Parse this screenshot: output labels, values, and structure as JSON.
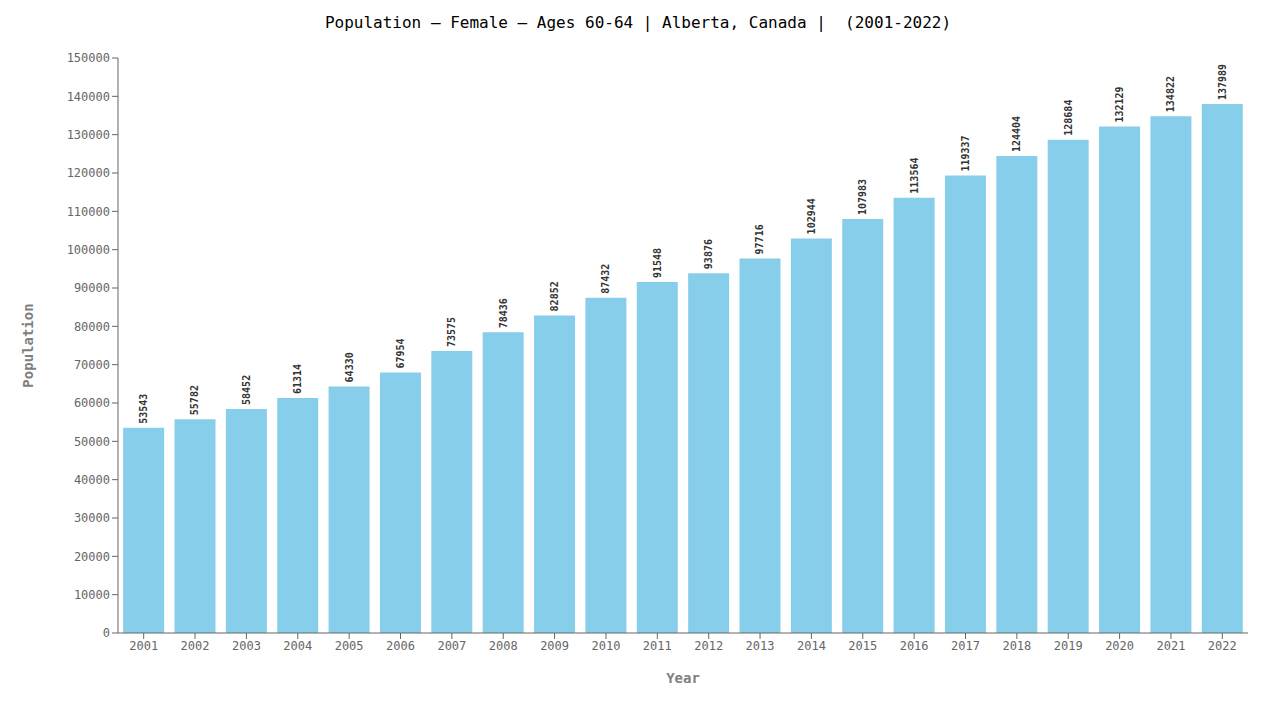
{
  "chart_data": {
    "type": "bar",
    "title": "Population – Female – Ages 60-64 | Alberta, Canada |  (2001-2022)",
    "xlabel": "Year",
    "ylabel": "Population",
    "categories": [
      "2001",
      "2002",
      "2003",
      "2004",
      "2005",
      "2006",
      "2007",
      "2008",
      "2009",
      "2010",
      "2011",
      "2012",
      "2013",
      "2014",
      "2015",
      "2016",
      "2017",
      "2018",
      "2019",
      "2020",
      "2021",
      "2022"
    ],
    "values": [
      53543,
      55782,
      58452,
      61314,
      64330,
      67954,
      73575,
      78436,
      82852,
      87432,
      91548,
      93876,
      97716,
      102944,
      107983,
      113564,
      119337,
      124404,
      128684,
      132129,
      134822,
      137989
    ],
    "color": "#87CEEB",
    "ylim": [
      0,
      150000
    ],
    "yticks": [
      0,
      10000,
      20000,
      30000,
      40000,
      50000,
      60000,
      70000,
      80000,
      90000,
      100000,
      110000,
      120000,
      130000,
      140000,
      150000
    ],
    "grid": false,
    "data_labels": true
  }
}
